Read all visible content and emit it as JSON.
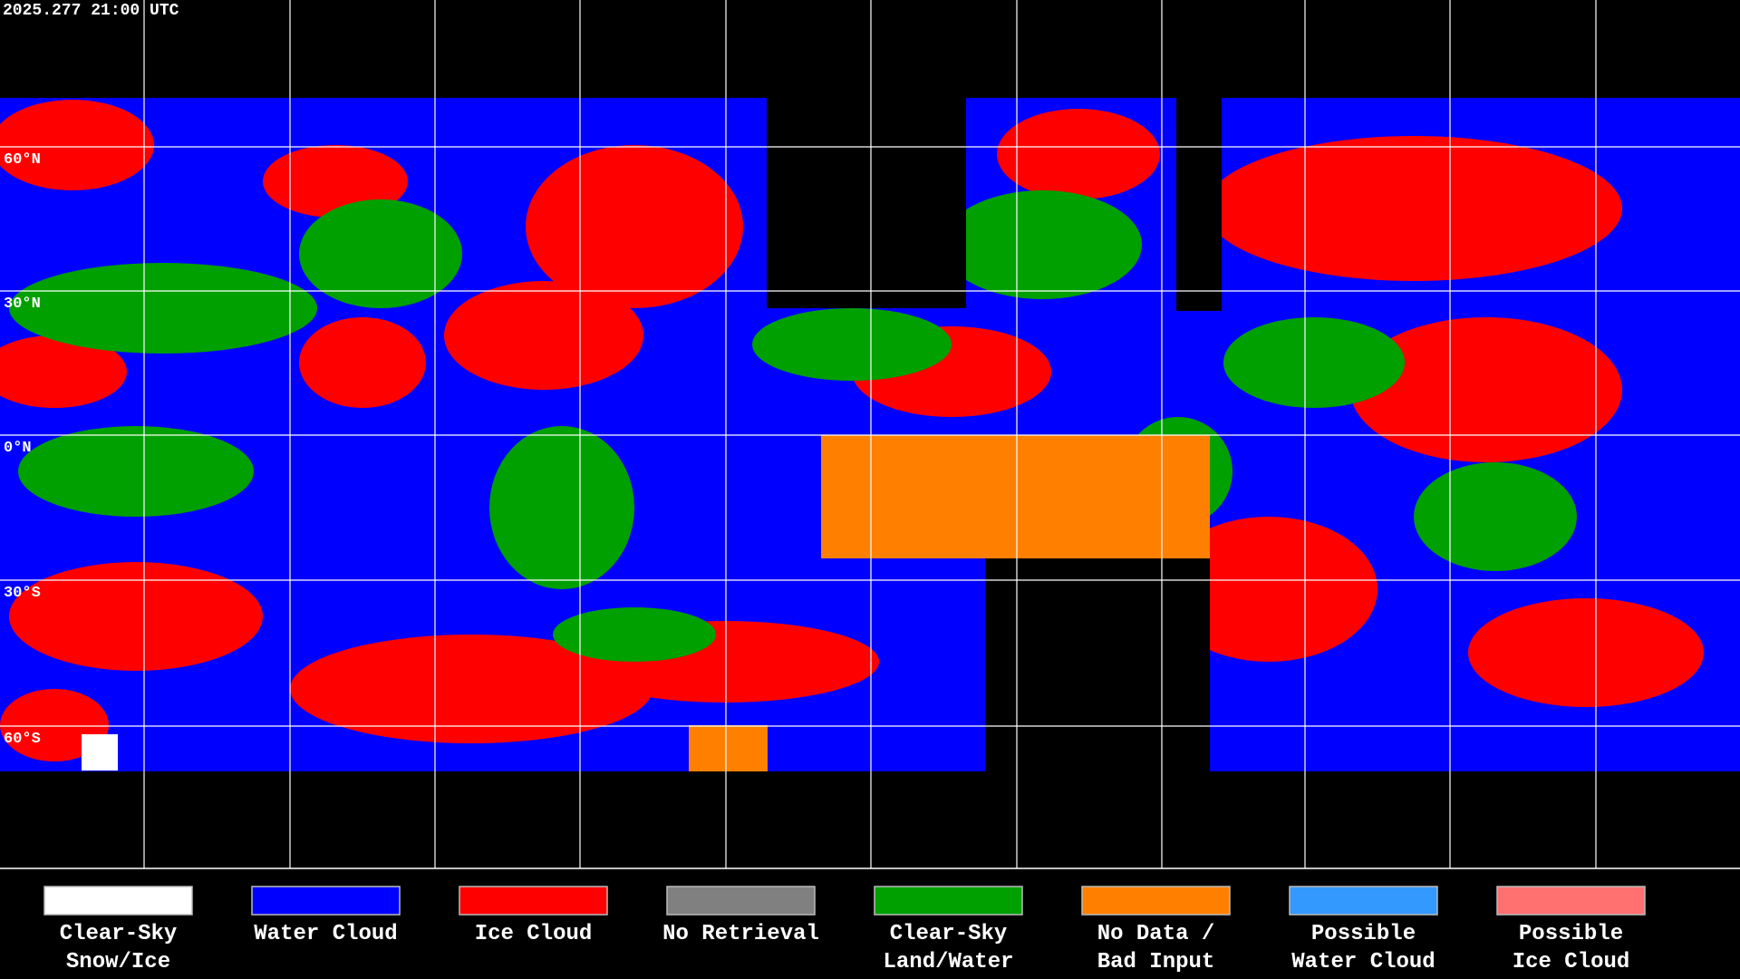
{
  "header": {
    "title": "2025.277 21:00 UTC"
  },
  "map": {
    "lat_labels": [
      "60°N",
      "30°N",
      "0°N",
      "30°S",
      "60°S"
    ]
  },
  "legend": [
    {
      "label": [
        "Clear-Sky",
        "Snow/Ice"
      ],
      "color": "#ffffff"
    },
    {
      "label": [
        "Water Cloud"
      ],
      "color": "#0000ff"
    },
    {
      "label": [
        "Ice Cloud"
      ],
      "color": "#ff0000"
    },
    {
      "label": [
        "No Retrieval"
      ],
      "color": "#808080"
    },
    {
      "label": [
        "Clear-Sky",
        "Land/Water"
      ],
      "color": "#00a000"
    },
    {
      "label": [
        "No Data /",
        "Bad Input"
      ],
      "color": "#ff8000"
    },
    {
      "label": [
        "Possible",
        "Water Cloud"
      ],
      "color": "#3399ff"
    },
    {
      "label": [
        "Possible",
        "Ice Cloud"
      ],
      "color": "#ff7070"
    }
  ]
}
